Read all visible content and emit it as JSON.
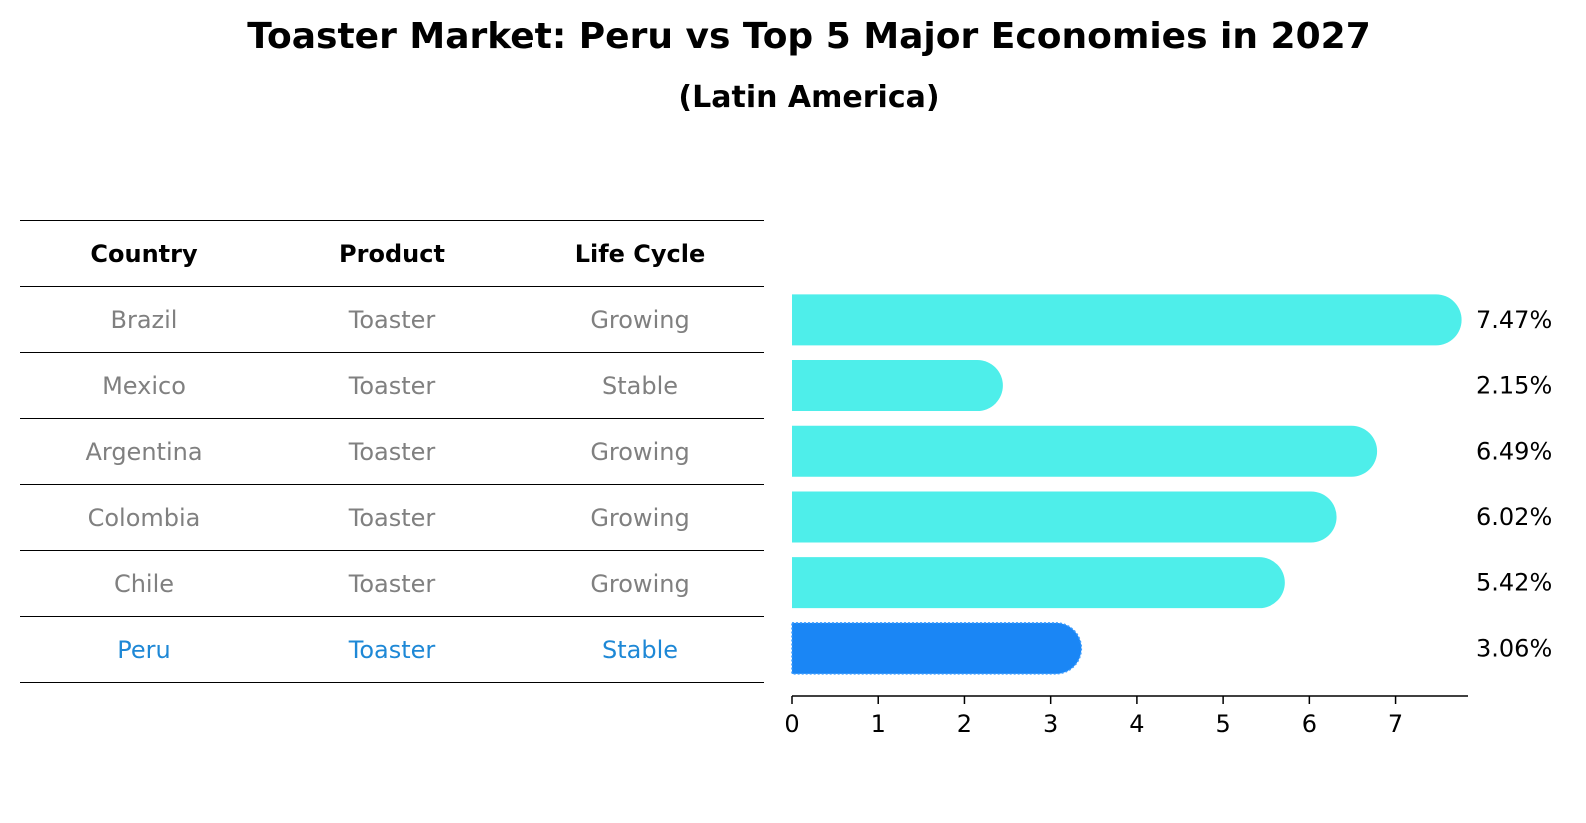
{
  "chart_data": {
    "type": "bar",
    "orientation": "horizontal",
    "title": "Toaster Market: Peru vs Top 5 Major Economies in 2027",
    "subtitle": "(Latin America)",
    "table": {
      "columns": [
        "Country",
        "Product",
        "Life Cycle"
      ],
      "rows": [
        {
          "country": "Brazil",
          "product": "Toaster",
          "life_cycle": "Growing"
        },
        {
          "country": "Mexico",
          "product": "Toaster",
          "life_cycle": "Stable"
        },
        {
          "country": "Argentina",
          "product": "Toaster",
          "life_cycle": "Growing"
        },
        {
          "country": "Colombia",
          "product": "Toaster",
          "life_cycle": "Growing"
        },
        {
          "country": "Chile",
          "product": "Toaster",
          "life_cycle": "Growing"
        },
        {
          "country": "Peru",
          "product": "Toaster",
          "life_cycle": "Stable"
        }
      ]
    },
    "categories": [
      "Brazil",
      "Mexico",
      "Argentina",
      "Colombia",
      "Chile",
      "Peru"
    ],
    "values": [
      7.47,
      2.15,
      6.49,
      6.02,
      5.42,
      3.06
    ],
    "value_labels": [
      "7.47%",
      "2.15%",
      "6.49%",
      "6.02%",
      "5.42%",
      "3.06%"
    ],
    "highlight": "Peru",
    "xlim": [
      0,
      7.84
    ],
    "xticks": [
      0,
      1,
      2,
      3,
      4,
      5,
      6,
      7
    ],
    "colors": {
      "bar": "#4eeeea",
      "highlight_bar": "#1a86f5",
      "table_text": "#808080",
      "highlight_text": "#1e88d6"
    },
    "grid": false
  }
}
